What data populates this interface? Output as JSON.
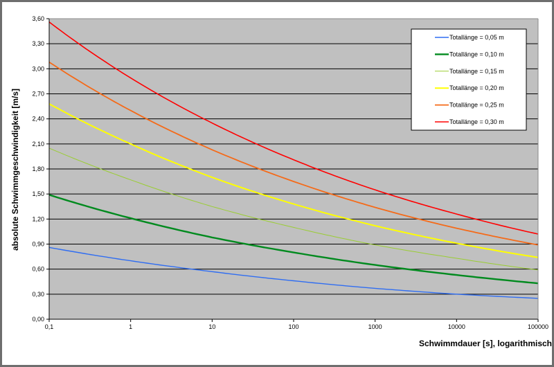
{
  "chart_data": {
    "type": "line",
    "title": "",
    "xlabel": "Schwimmdauer [s], logarithmisch",
    "ylabel": "absolute Schwimmgeschwindigkeit [m/s]",
    "x_scale": "log",
    "xlim": [
      0.1,
      100000
    ],
    "ylim": [
      0,
      3.6
    ],
    "grid": "horizontal",
    "legend_position": "top-right",
    "plot_background": "#c0c0c0",
    "x_ticks": [
      0.1,
      1,
      10,
      100,
      1000,
      10000,
      100000
    ],
    "x_tick_labels": [
      "0,1",
      "1",
      "10",
      "100",
      "1000",
      "10000",
      "100000"
    ],
    "y_ticks": [
      0,
      0.3,
      0.6,
      0.9,
      1.2,
      1.5,
      1.8,
      2.1,
      2.4,
      2.7,
      3.0,
      3.3,
      3.6
    ],
    "y_tick_labels": [
      "0,00",
      "0,30",
      "0,60",
      "0,90",
      "1,20",
      "1,50",
      "1,80",
      "2,10",
      "2,40",
      "2,70",
      "3,00",
      "3,30",
      "3,60"
    ],
    "x": [
      0.1,
      1,
      10,
      100,
      1000,
      10000,
      100000
    ],
    "series": [
      {
        "name": "Totallänge = 0,05 m",
        "color": "#2f6df2",
        "values": [
          0.86,
          0.7,
          0.57,
          0.46,
          0.37,
          0.3,
          0.25
        ]
      },
      {
        "name": "Totallänge = 0,10 m",
        "color": "#008a1e",
        "values": [
          1.49,
          1.21,
          0.98,
          0.8,
          0.65,
          0.53,
          0.43
        ]
      },
      {
        "name": "Totallänge = 0,15 m",
        "color": "#9acd32",
        "values": [
          2.05,
          1.67,
          1.35,
          1.1,
          0.89,
          0.73,
          0.59
        ]
      },
      {
        "name": "Totallänge = 0,20 m",
        "color": "#ffff00",
        "values": [
          2.58,
          2.1,
          1.7,
          1.38,
          1.12,
          0.91,
          0.74
        ]
      },
      {
        "name": "Totallänge = 0,25 m",
        "color": "#f56a18",
        "values": [
          3.08,
          2.5,
          2.03,
          1.65,
          1.34,
          1.09,
          0.89
        ]
      },
      {
        "name": "Totallänge = 0,30 m",
        "color": "#ff0000",
        "values": [
          3.56,
          2.89,
          2.35,
          1.91,
          1.55,
          1.26,
          1.02
        ]
      }
    ]
  }
}
